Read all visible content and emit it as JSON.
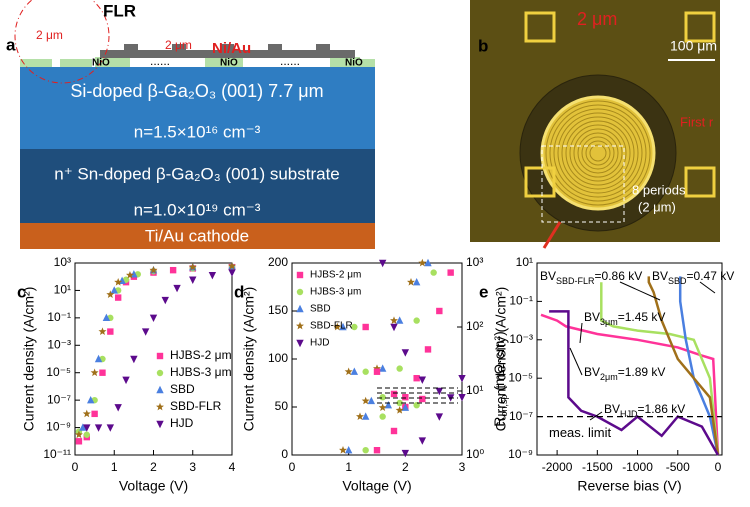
{
  "panel_a": {
    "label": "a",
    "flr": "FLR",
    "ring_width": "2 μm",
    "spacing": "2 μm",
    "metal": "Ni/Au",
    "nio": [
      "NiO",
      "NiO",
      "NiO"
    ],
    "dots": "......",
    "drift": "Si-doped β-Ga₂O₃ (001)  7.7 μm",
    "drift_doping": "n=1.5×10¹⁶ cm⁻³",
    "substrate": "n⁺ Sn-doped β-Ga₂O₃ (001) substrate",
    "substrate_doping": "n=1.0×10¹⁹ cm⁻³",
    "cathode": "Ti/Au cathode"
  },
  "panel_b": {
    "label": "b",
    "period": "2 μm",
    "scale": "100 μm",
    "ring": "First r",
    "periods": "8 periods",
    "period_width": "(2 μm)"
  },
  "chart_data": [
    {
      "type": "scatter",
      "panel_label": "c",
      "xlabel": "Voltage (V)",
      "ylabel": "Current density (A/cm²)",
      "log_y": true,
      "legend": "lower right",
      "xlim": [
        0,
        4
      ],
      "xticks": [
        0,
        1,
        2,
        3,
        4
      ],
      "ylim": [
        1e-11,
        1000.0
      ],
      "yticks": [
        {
          "value": 1e-11,
          "label": "10⁻¹¹"
        },
        {
          "value": 1e-09,
          "label": "10⁻⁹"
        },
        {
          "value": 1e-07,
          "label": "10⁻⁷"
        },
        {
          "value": 1e-05,
          "label": "10⁻⁵"
        },
        {
          "value": 0.001,
          "label": "10⁻³"
        },
        {
          "value": 0.1,
          "label": "10⁻¹"
        },
        {
          "value": 10,
          "label": "10¹"
        },
        {
          "value": 1000,
          "label": "10³"
        }
      ],
      "series": [
        {
          "name": "HJBS-2 μm",
          "color": "#ff3399",
          "marker": "square",
          "x": [
            0.1,
            0.3,
            0.5,
            0.7,
            0.9,
            1.1,
            1.3,
            1.5,
            2,
            2.5,
            3,
            4
          ],
          "values": [
            1e-10,
            2e-10,
            1e-08,
            1e-05,
            0.01,
            3,
            40,
            100,
            200,
            300,
            400,
            500
          ]
        },
        {
          "name": "HJBS-3 μm",
          "color": "#a8e060",
          "marker": "circle",
          "x": [
            0.1,
            0.3,
            0.5,
            0.7,
            0.9,
            1.1,
            1.3,
            1.6,
            2,
            3,
            4
          ],
          "values": [
            5e-10,
            3e-10,
            1e-07,
            0.0001,
            0.1,
            10,
            60,
            150,
            250,
            400,
            500
          ]
        },
        {
          "name": "SBD",
          "color": "#4a7fe0",
          "marker": "triangle",
          "x": [
            0.2,
            0.4,
            0.6,
            0.8,
            1.0,
            1.2,
            1.5,
            2,
            3,
            4
          ],
          "values": [
            1e-09,
            1e-07,
            0.0001,
            0.1,
            10,
            50,
            150,
            300,
            500,
            600
          ]
        },
        {
          "name": "SBD-FLR",
          "color": "#a0701a",
          "marker": "star",
          "x": [
            0.1,
            0.3,
            0.5,
            0.7,
            0.9,
            1.1,
            1.4,
            2,
            3,
            4
          ],
          "values": [
            3e-10,
            1e-08,
            1e-05,
            0.01,
            5,
            40,
            130,
            300,
            500,
            600
          ]
        },
        {
          "name": "HJD",
          "color": "#5c0a8c",
          "marker": "tridown",
          "x": [
            0.3,
            0.6,
            0.9,
            1.1,
            1.3,
            1.5,
            1.8,
            2.0,
            2.3,
            2.6,
            3.0,
            3.5,
            4.0
          ],
          "values": [
            1e-09,
            1e-09,
            1e-09,
            3e-08,
            3e-06,
            0.0001,
            0.01,
            0.1,
            2,
            15,
            60,
            130,
            200
          ]
        }
      ]
    },
    {
      "type": "scatter",
      "panel_label": "d",
      "xlabel": "Voltage (V)",
      "ylabel": "Current density (A/cm²)",
      "y2label": [
        "R",
        "on,sp",
        " (mΩ·cm²)"
      ],
      "log_y2": true,
      "legend": "upper left",
      "xlim": [
        0,
        3
      ],
      "xticks": [
        0,
        1,
        2,
        3
      ],
      "ylim": [
        0,
        200
      ],
      "yticks": [
        0,
        50,
        100,
        150,
        200
      ],
      "y2lim": [
        1,
        1000
      ],
      "y2ticks": [
        {
          "value": 1,
          "label": "10⁰"
        },
        {
          "value": 10,
          "label": "10¹"
        },
        {
          "value": 100,
          "label": "10²"
        },
        {
          "value": 1000,
          "label": "10³"
        }
      ],
      "series": [
        {
          "name": "HJBS-2 μm",
          "color": "#ff3399",
          "marker": "square",
          "x": [
            1.5,
            1.8,
            2.0,
            2.2,
            2.4,
            2.6,
            2.8
          ],
          "values": [
            5,
            25,
            50,
            80,
            110,
            150,
            190
          ]
        },
        {
          "name": "HJBS-3 μm",
          "color": "#a8e060",
          "marker": "circle",
          "x": [
            1.3,
            1.6,
            1.9,
            2.2,
            2.5
          ],
          "values": [
            5,
            40,
            90,
            140,
            190
          ]
        },
        {
          "name": "SBD",
          "color": "#4a7fe0",
          "marker": "triangle",
          "x": [
            1.0,
            1.3,
            1.6,
            1.9,
            2.2,
            2.4
          ],
          "values": [
            5,
            40,
            90,
            140,
            180,
            200
          ]
        },
        {
          "name": "SBD-FLR",
          "color": "#a0701a",
          "marker": "star",
          "x": [
            0.9,
            1.2,
            1.5,
            1.8,
            2.1,
            2.3
          ],
          "values": [
            5,
            40,
            90,
            140,
            180,
            200
          ]
        },
        {
          "name": "HJD",
          "color": "#5c0a8c",
          "marker": "tridown",
          "x": [
            2.0,
            2.3,
            2.6,
            2.8,
            3.0
          ],
          "values": [
            2,
            15,
            40,
            60,
            80
          ]
        },
        {
          "color": "#ff3399",
          "marker": "square",
          "axis": "y2",
          "x": [
            1.3,
            1.5,
            1.8,
            2.0,
            2.3
          ],
          "values": [
            100,
            20,
            9,
            8,
            7.5
          ]
        },
        {
          "color": "#a8e060",
          "marker": "circle",
          "axis": "y2",
          "x": [
            1.1,
            1.3,
            1.6,
            1.9,
            2.2
          ],
          "values": [
            100,
            20,
            8,
            6.5,
            6
          ]
        },
        {
          "color": "#4a7fe0",
          "marker": "triangle",
          "axis": "y2",
          "x": [
            0.9,
            1.1,
            1.4,
            1.7,
            2.0
          ],
          "values": [
            100,
            20,
            7,
            6,
            5.5
          ]
        },
        {
          "color": "#a0701a",
          "marker": "star",
          "axis": "y2",
          "x": [
            0.8,
            1.0,
            1.3,
            1.6,
            1.9
          ],
          "values": [
            100,
            20,
            7,
            5.5,
            5
          ]
        },
        {
          "color": "#5c0a8c",
          "marker": "tridown",
          "axis": "y2",
          "x": [
            1.6,
            1.8,
            2.0,
            2.3,
            2.6,
            3.0
          ],
          "values": [
            1000,
            100,
            40,
            15,
            10,
            8
          ]
        }
      ]
    },
    {
      "type": "line",
      "panel_label": "e",
      "xlabel": "Reverse bias (V)",
      "ylabel": "Current density (A/cm²)",
      "log_y": true,
      "xlim": [
        -2250,
        50
      ],
      "xticks": [
        -2000,
        -1500,
        -1000,
        -500,
        0
      ],
      "ylim": [
        1e-09,
        10
      ],
      "yticks": [
        {
          "value": 1e-09,
          "label": "10⁻⁹"
        },
        {
          "value": 1e-07,
          "label": "10⁻⁷"
        },
        {
          "value": 1e-05,
          "label": "10⁻⁵"
        },
        {
          "value": 0.001,
          "label": "10⁻³"
        },
        {
          "value": 0.1,
          "label": "10⁻¹"
        },
        {
          "value": 10,
          "label": "10¹"
        }
      ],
      "meas_limit": 1e-07,
      "meas_label": "meas. limit",
      "annotations": [
        [
          "BV",
          "SBD-FLR",
          "=0.86 kV"
        ],
        [
          "BV",
          "SBD",
          "=0.47 kV"
        ],
        [
          "BV",
          "3μm",
          "=1.45 kV"
        ],
        [
          "BV",
          "2μm",
          "=1.89 kV"
        ],
        [
          "BV",
          "HJD",
          "=1.86 kV"
        ]
      ],
      "series": [
        {
          "color": "#ff3399",
          "x": [
            -2200,
            -2000,
            -1890,
            -1500,
            -1000,
            -500,
            -200,
            -60,
            0
          ],
          "values": [
            0.02,
            0.01,
            0.005,
            0.002,
            0.001,
            0.0004,
            0.00015,
            0.0001,
            1e-09
          ]
        },
        {
          "color": "#a8e060",
          "x": [
            -1450,
            -1450,
            -1300,
            -1000,
            -600,
            -300,
            -100,
            0
          ],
          "values": [
            1,
            0.01,
            0.005,
            0.003,
            0.002,
            0.001,
            1e-05,
            1e-09
          ]
        },
        {
          "color": "#4a7fe0",
          "x": [
            -470,
            -470,
            -400,
            -300,
            -200,
            -100,
            0
          ],
          "values": [
            2,
            0.1,
            0.001,
            1e-05,
            1e-06,
            1e-07,
            1e-09
          ]
        },
        {
          "color": "#a0701a",
          "x": [
            -860,
            -860,
            -800,
            -700,
            -600,
            -500,
            -300,
            -100,
            0
          ],
          "values": [
            2,
            1,
            0.3,
            0.01,
            0.001,
            0.0001,
            1e-05,
            1e-06,
            1e-09
          ]
        },
        {
          "color": "#5c0a8c",
          "x": [
            -2100,
            -1860,
            -1860,
            -1700,
            -1500,
            -1200,
            -1000,
            -700,
            -500,
            -200,
            0
          ],
          "values": [
            0.03,
            0.03,
            1e-06,
            2e-07,
            1e-07,
            2e-08,
            1e-07,
            1e-08,
            1e-07,
            3e-08,
            1e-09
          ]
        }
      ]
    }
  ]
}
